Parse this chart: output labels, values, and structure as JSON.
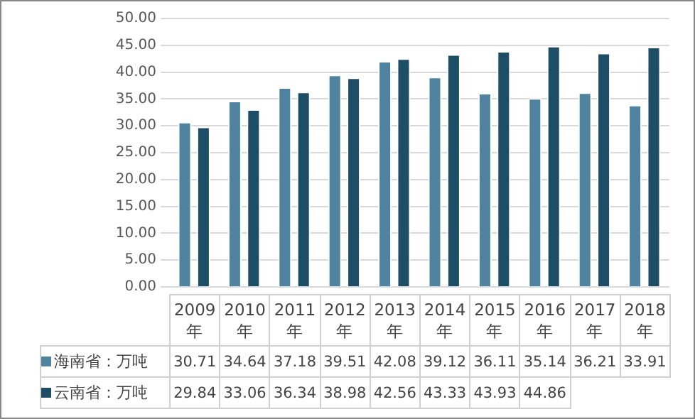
{
  "chart_data": {
    "type": "bar",
    "categories": [
      "2009年",
      "2010年",
      "2011年",
      "2012年",
      "2013年",
      "2014年",
      "2015年",
      "2016年",
      "2017年",
      "2018年"
    ],
    "series": [
      {
        "name": "海南省：万吨",
        "color": "#4f83a0",
        "values": [
          30.71,
          34.64,
          37.18,
          39.51,
          42.08,
          39.12,
          36.11,
          35.14,
          36.21,
          33.91
        ],
        "value_labels": [
          "30.71",
          "34.64",
          "37.18",
          "39.51",
          "42.08",
          "39.12",
          "36.11",
          "35.14",
          "36.21",
          "33.91"
        ]
      },
      {
        "name": "云南省：万吨",
        "color": "#1e4d66",
        "values": [
          29.84,
          33.06,
          36.34,
          38.98,
          42.56,
          43.33,
          43.93,
          44.86,
          43.6,
          44.7
        ],
        "value_labels": [
          "29.84",
          "33.06",
          "36.34",
          "38.98",
          "42.56",
          "43.33",
          "43.93",
          "44.86",
          null,
          null
        ]
      }
    ],
    "ylim": [
      0,
      50
    ],
    "yticks": [
      {
        "value": 0,
        "label": "0.00"
      },
      {
        "value": 5,
        "label": "5.00"
      },
      {
        "value": 10,
        "label": "10.00"
      },
      {
        "value": 15,
        "label": "15.00"
      },
      {
        "value": 20,
        "label": "20.00"
      },
      {
        "value": 25,
        "label": "25.00"
      },
      {
        "value": 30,
        "label": "30.00"
      },
      {
        "value": 35,
        "label": "35.00"
      },
      {
        "value": 40,
        "label": "40.00"
      },
      {
        "value": 45,
        "label": "45.00"
      },
      {
        "value": 50,
        "label": "50.00"
      }
    ],
    "grid": "y",
    "legend": "bottom"
  }
}
